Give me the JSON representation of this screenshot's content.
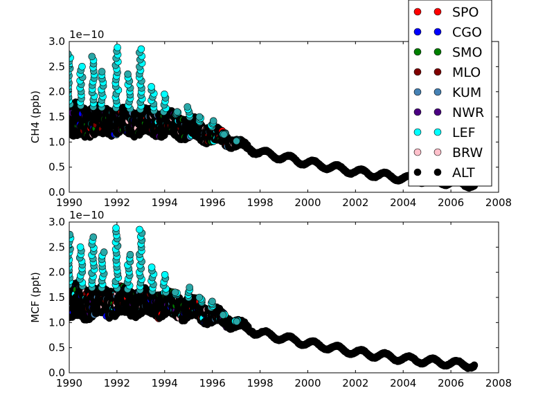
{
  "chart_data": [
    {
      "type": "scatter",
      "title": "",
      "xlabel": "",
      "ylabel": "CH4 (ppb)",
      "offset_text": "1e−10",
      "xlim": [
        1990,
        2008
      ],
      "ylim": [
        0.0,
        3.0
      ],
      "xticks": [
        "1990",
        "1992",
        "1994",
        "1996",
        "1998",
        "2000",
        "2002",
        "2004",
        "2006",
        "2008"
      ],
      "yticks": [
        "0.0",
        "0.5",
        "1.0",
        "1.5",
        "2.0",
        "2.5",
        "3.0"
      ],
      "grid": false,
      "legend_position": "upper-right",
      "series": [
        {
          "name": "SPO",
          "color": "#ff0000"
        },
        {
          "name": "CGO",
          "color": "#0000ff"
        },
        {
          "name": "SMO",
          "color": "#008000"
        },
        {
          "name": "MLO",
          "color": "#800000"
        },
        {
          "name": "KUM",
          "color": "#4682b4"
        },
        {
          "name": "NWR",
          "color": "#4b0082"
        },
        {
          "name": "LEF",
          "color": "#00ffff"
        },
        {
          "name": "BRW",
          "color": "#ffc0cb"
        },
        {
          "name": "ALT",
          "color": "#000000"
        }
      ],
      "envelope": {
        "x": [
          1990,
          1991,
          1992,
          1993,
          1994,
          1995,
          1996,
          1997,
          1998,
          2000,
          2002,
          2004,
          2006,
          2007
        ],
        "lower": [
          1.05,
          1.12,
          1.15,
          1.16,
          1.13,
          1.08,
          1.0,
          0.9,
          0.78,
          0.58,
          0.4,
          0.27,
          0.18,
          0.13
        ],
        "upper": [
          1.75,
          1.7,
          1.68,
          1.65,
          1.6,
          1.5,
          1.3,
          1.05,
          0.8,
          0.6,
          0.42,
          0.29,
          0.2,
          0.16
        ],
        "seasonal_peaks": [
          {
            "x": 1990,
            "y": 2.75
          },
          {
            "x": 1990.5,
            "y": 2.5
          },
          {
            "x": 1991,
            "y": 2.7
          },
          {
            "x": 1991.4,
            "y": 2.4
          },
          {
            "x": 1992,
            "y": 2.88
          },
          {
            "x": 1992.5,
            "y": 2.35
          },
          {
            "x": 1993,
            "y": 2.85
          },
          {
            "x": 1993.5,
            "y": 2.1
          },
          {
            "x": 1994,
            "y": 1.95
          },
          {
            "x": 1994.5,
            "y": 1.6
          },
          {
            "x": 1995,
            "y": 1.7
          },
          {
            "x": 1995.5,
            "y": 1.5
          },
          {
            "x": 1996,
            "y": 1.42
          },
          {
            "x": 1996.5,
            "y": 1.15
          },
          {
            "x": 1997,
            "y": 1.02
          }
        ]
      }
    },
    {
      "type": "scatter",
      "title": "",
      "xlabel": "",
      "ylabel": "MCF (ppt)",
      "offset_text": "1e−10",
      "xlim": [
        1990,
        2008
      ],
      "ylim": [
        0.0,
        3.0
      ],
      "xticks": [
        "1990",
        "1992",
        "1994",
        "1996",
        "1998",
        "2000",
        "2002",
        "2004",
        "2006",
        "2008"
      ],
      "yticks": [
        "0.0",
        "0.5",
        "1.0",
        "1.5",
        "2.0",
        "2.5",
        "3.0"
      ],
      "grid": false,
      "series": [
        {
          "name": "SPO",
          "color": "#ff0000"
        },
        {
          "name": "CGO",
          "color": "#0000ff"
        },
        {
          "name": "SMO",
          "color": "#008000"
        },
        {
          "name": "MLO",
          "color": "#800000"
        },
        {
          "name": "KUM",
          "color": "#4682b4"
        },
        {
          "name": "NWR",
          "color": "#4b0082"
        },
        {
          "name": "LEF",
          "color": "#00ffff"
        },
        {
          "name": "BRW",
          "color": "#ffc0cb"
        },
        {
          "name": "ALT",
          "color": "#000000"
        }
      ],
      "envelope": {
        "x": [
          1990,
          1991,
          1992,
          1993,
          1994,
          1995,
          1996,
          1997,
          1998,
          2000,
          2002,
          2004,
          2006,
          2007
        ],
        "lower": [
          1.05,
          1.12,
          1.15,
          1.16,
          1.13,
          1.08,
          1.0,
          0.9,
          0.78,
          0.58,
          0.4,
          0.27,
          0.18,
          0.13
        ],
        "upper": [
          1.75,
          1.7,
          1.68,
          1.65,
          1.6,
          1.5,
          1.3,
          1.05,
          0.8,
          0.6,
          0.42,
          0.29,
          0.2,
          0.16
        ],
        "seasonal_peaks": [
          {
            "x": 1990,
            "y": 2.75
          },
          {
            "x": 1990.5,
            "y": 2.5
          },
          {
            "x": 1991,
            "y": 2.7
          },
          {
            "x": 1991.4,
            "y": 2.4
          },
          {
            "x": 1992,
            "y": 2.88
          },
          {
            "x": 1992.5,
            "y": 2.35
          },
          {
            "x": 1993,
            "y": 2.85
          },
          {
            "x": 1993.5,
            "y": 2.1
          },
          {
            "x": 1994,
            "y": 1.95
          },
          {
            "x": 1994.5,
            "y": 1.6
          },
          {
            "x": 1995,
            "y": 1.7
          },
          {
            "x": 1995.5,
            "y": 1.5
          },
          {
            "x": 1996,
            "y": 1.42
          },
          {
            "x": 1996.5,
            "y": 1.15
          },
          {
            "x": 1997,
            "y": 1.02
          }
        ]
      }
    }
  ]
}
